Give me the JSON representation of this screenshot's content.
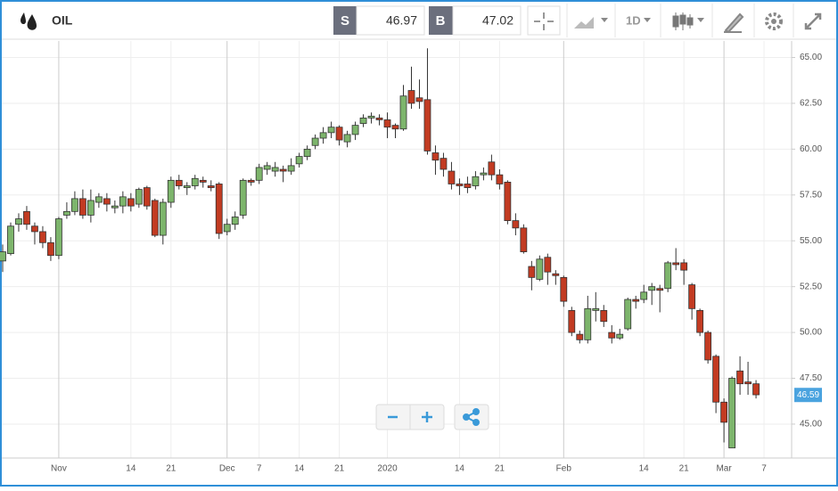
{
  "toolbar": {
    "symbol": "OIL",
    "sell_label": "S",
    "sell_price": "46.97",
    "buy_label": "B",
    "buy_price": "47.02",
    "period": "1D"
  },
  "chart_data": {
    "type": "candlestick",
    "categories": [
      null,
      null,
      null,
      null,
      null,
      null,
      null,
      "Nov",
      null,
      null,
      null,
      null,
      null,
      null,
      null,
      null,
      "14",
      null,
      null,
      null,
      null,
      "21",
      null,
      null,
      null,
      null,
      null,
      null,
      "Dec",
      null,
      null,
      null,
      "7",
      null,
      null,
      null,
      null,
      "14",
      null,
      null,
      null,
      null,
      "21",
      null,
      null,
      null,
      null,
      null,
      "2020",
      null,
      null,
      null,
      null,
      null,
      null,
      null,
      null,
      "14",
      null,
      null,
      null,
      null,
      "21",
      null,
      null,
      null,
      null,
      null,
      null,
      null,
      "Feb",
      null,
      null,
      null,
      null,
      null,
      null,
      null,
      null,
      null,
      "14",
      null,
      null,
      null,
      null,
      "21",
      null,
      null,
      null,
      null,
      "Mar",
      null,
      null,
      null,
      null,
      "7"
    ],
    "open": [
      53.9,
      54.3,
      55.9,
      56.6,
      55.8,
      55.5,
      54.9,
      54.2,
      56.4,
      56.6,
      57.3,
      56.4,
      57.1,
      57.3,
      56.8,
      56.9,
      57.3,
      57.0,
      57.9,
      57.2,
      55.3,
      57.1,
      58.3,
      57.9,
      58.0,
      58.3,
      58.0,
      58.1,
      55.5,
      55.9,
      56.4,
      58.3,
      58.3,
      58.9,
      58.8,
      58.9,
      58.8,
      59.2,
      59.6,
      60.2,
      60.6,
      60.9,
      61.2,
      60.4,
      60.8,
      61.4,
      61.7,
      61.7,
      61.6,
      61.3,
      61.1,
      63.2,
      62.8,
      62.7,
      59.8,
      59.5,
      58.8,
      58.1,
      58.1,
      58.0,
      58.6,
      59.3,
      58.6,
      58.2,
      56.1,
      55.7,
      53.6,
      52.9,
      54.1,
      53.2,
      53.0,
      51.2,
      49.9,
      49.6,
      51.2,
      51.2,
      50.0,
      49.7,
      50.2,
      51.8,
      51.8,
      52.3,
      52.4,
      52.4,
      53.8,
      53.8,
      52.6,
      51.2,
      50.0,
      48.7,
      46.2,
      43.7,
      47.9,
      47.3,
      47.2,
      null
    ],
    "high": [
      54.8,
      56.0,
      56.5,
      56.9,
      56.0,
      55.8,
      55.2,
      56.3,
      57.1,
      57.7,
      57.8,
      57.8,
      57.6,
      57.6,
      57.2,
      57.7,
      57.6,
      57.9,
      58.0,
      57.3,
      57.3,
      58.5,
      58.6,
      58.2,
      58.6,
      58.5,
      58.3,
      58.2,
      56.2,
      56.6,
      58.4,
      58.4,
      59.2,
      59.3,
      59.3,
      59.1,
      59.5,
      59.8,
      60.2,
      60.8,
      61.2,
      61.5,
      61.3,
      61.0,
      61.5,
      61.9,
      62.0,
      61.9,
      62.0,
      61.4,
      63.5,
      64.5,
      63.8,
      65.5,
      60.2,
      59.8,
      59.3,
      58.4,
      58.5,
      58.8,
      59.0,
      59.7,
      58.9,
      58.3,
      56.5,
      55.9,
      53.9,
      54.2,
      54.3,
      53.4,
      53.1,
      51.4,
      50.1,
      52.0,
      52.2,
      51.5,
      50.4,
      50.2,
      51.9,
      52.0,
      52.6,
      52.7,
      52.6,
      53.9,
      54.6,
      54.0,
      52.7,
      51.3,
      50.1,
      48.8,
      46.4,
      47.6,
      48.7,
      48.4,
      47.4,
      null
    ],
    "low": [
      53.3,
      54.2,
      55.5,
      55.6,
      54.8,
      54.6,
      53.9,
      54.0,
      56.2,
      56.4,
      56.2,
      56.0,
      56.8,
      56.6,
      56.5,
      56.5,
      56.6,
      56.8,
      56.7,
      55.2,
      54.8,
      56.8,
      57.8,
      57.5,
      57.8,
      57.9,
      57.7,
      55.1,
      55.3,
      55.6,
      56.2,
      58.0,
      58.1,
      58.6,
      58.5,
      58.2,
      58.6,
      59.0,
      59.4,
      60.0,
      60.3,
      60.6,
      60.2,
      60.1,
      60.5,
      61.2,
      61.4,
      61.3,
      60.6,
      60.6,
      61.0,
      62.2,
      62.2,
      59.7,
      58.6,
      58.5,
      57.8,
      57.5,
      57.6,
      57.8,
      58.3,
      58.3,
      57.8,
      55.9,
      55.3,
      54.3,
      52.3,
      52.8,
      52.6,
      52.6,
      51.4,
      49.8,
      49.4,
      49.4,
      50.6,
      50.3,
      49.4,
      49.6,
      50.1,
      51.3,
      51.6,
      51.5,
      51.1,
      52.2,
      53.4,
      52.6,
      50.7,
      49.8,
      48.3,
      45.6,
      44.0,
      43.7,
      46.6,
      46.6,
      46.4,
      null
    ],
    "close": [
      54.4,
      55.8,
      56.2,
      55.9,
      55.5,
      54.9,
      54.2,
      56.2,
      56.6,
      57.3,
      56.4,
      57.2,
      57.4,
      57.0,
      56.9,
      57.4,
      56.9,
      57.8,
      56.9,
      55.3,
      57.1,
      58.3,
      58.0,
      58.0,
      58.4,
      58.2,
      57.9,
      55.4,
      55.9,
      56.3,
      58.3,
      58.2,
      59.0,
      59.1,
      59.0,
      58.8,
      59.1,
      59.6,
      60.0,
      60.6,
      60.9,
      61.2,
      60.5,
      60.8,
      61.3,
      61.7,
      61.8,
      61.6,
      61.2,
      61.1,
      62.9,
      62.5,
      62.6,
      59.9,
      59.4,
      58.9,
      58.1,
      58.0,
      57.9,
      58.5,
      58.7,
      58.6,
      58.1,
      56.1,
      55.7,
      54.4,
      53.0,
      54.0,
      53.3,
      53.1,
      51.7,
      50.0,
      49.6,
      51.3,
      51.3,
      50.6,
      49.7,
      49.9,
      51.8,
      51.7,
      52.2,
      52.5,
      52.3,
      53.8,
      53.7,
      53.4,
      51.3,
      50.0,
      48.5,
      46.2,
      45.1,
      47.5,
      47.2,
      47.2,
      46.6,
      null
    ],
    "up_color": "#7db56c",
    "down_color": "#c23b22",
    "ylim": [
      43.15,
      65.9
    ],
    "yticks": [
      {
        "value": 45,
        "label": "45.00"
      },
      {
        "value": 47.5,
        "label": "47.50"
      },
      {
        "value": 50,
        "label": "50.00"
      },
      {
        "value": 52.5,
        "label": "52.50"
      },
      {
        "value": 55,
        "label": "55.00"
      },
      {
        "value": 57.5,
        "label": "57.50"
      },
      {
        "value": 60,
        "label": "60.00"
      },
      {
        "value": 62.5,
        "label": "62.50"
      },
      {
        "value": 65,
        "label": "65.00"
      }
    ],
    "grid": true,
    "current_price": 46.59
  }
}
